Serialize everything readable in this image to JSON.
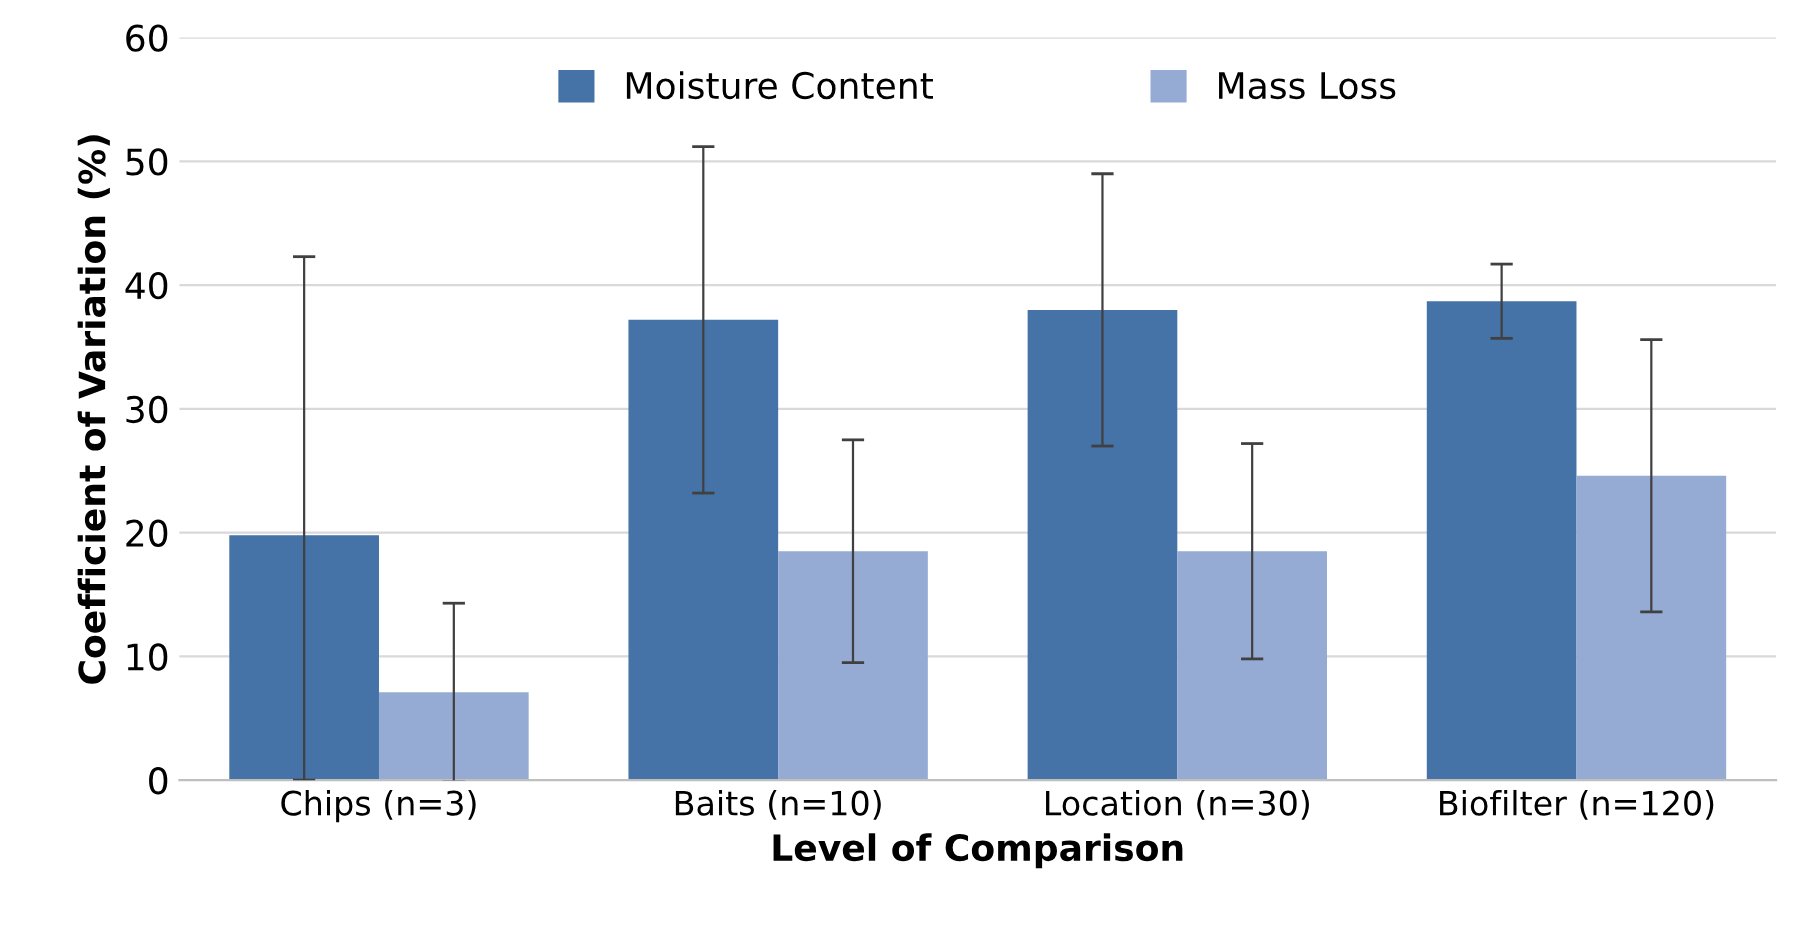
{
  "chart_data": {
    "type": "bar",
    "xlabel": "Level of Comparison",
    "ylabel": "Coefficient of Variation (%)",
    "categories": [
      "Chips (n=3)",
      "Baits (n=10)",
      "Location (n=30)",
      "Biofilter (n=120)"
    ],
    "series": [
      {
        "name": "Moisture Content",
        "color": "#4572a7",
        "values": [
          19.8,
          37.2,
          38.0,
          38.7
        ],
        "errors": [
          [
            0,
            42.3
          ],
          14,
          11,
          3
        ]
      },
      {
        "name": "Mass Loss",
        "color": "#95abd3",
        "values": [
          7.1,
          18.5,
          18.5,
          24.6
        ],
        "errors": [
          7.2,
          9,
          8.7,
          11
        ]
      }
    ],
    "ylim": [
      0,
      60
    ],
    "yticks": [
      0,
      10,
      20,
      30,
      40,
      50,
      60
    ],
    "grid": "y",
    "legend": "top"
  }
}
